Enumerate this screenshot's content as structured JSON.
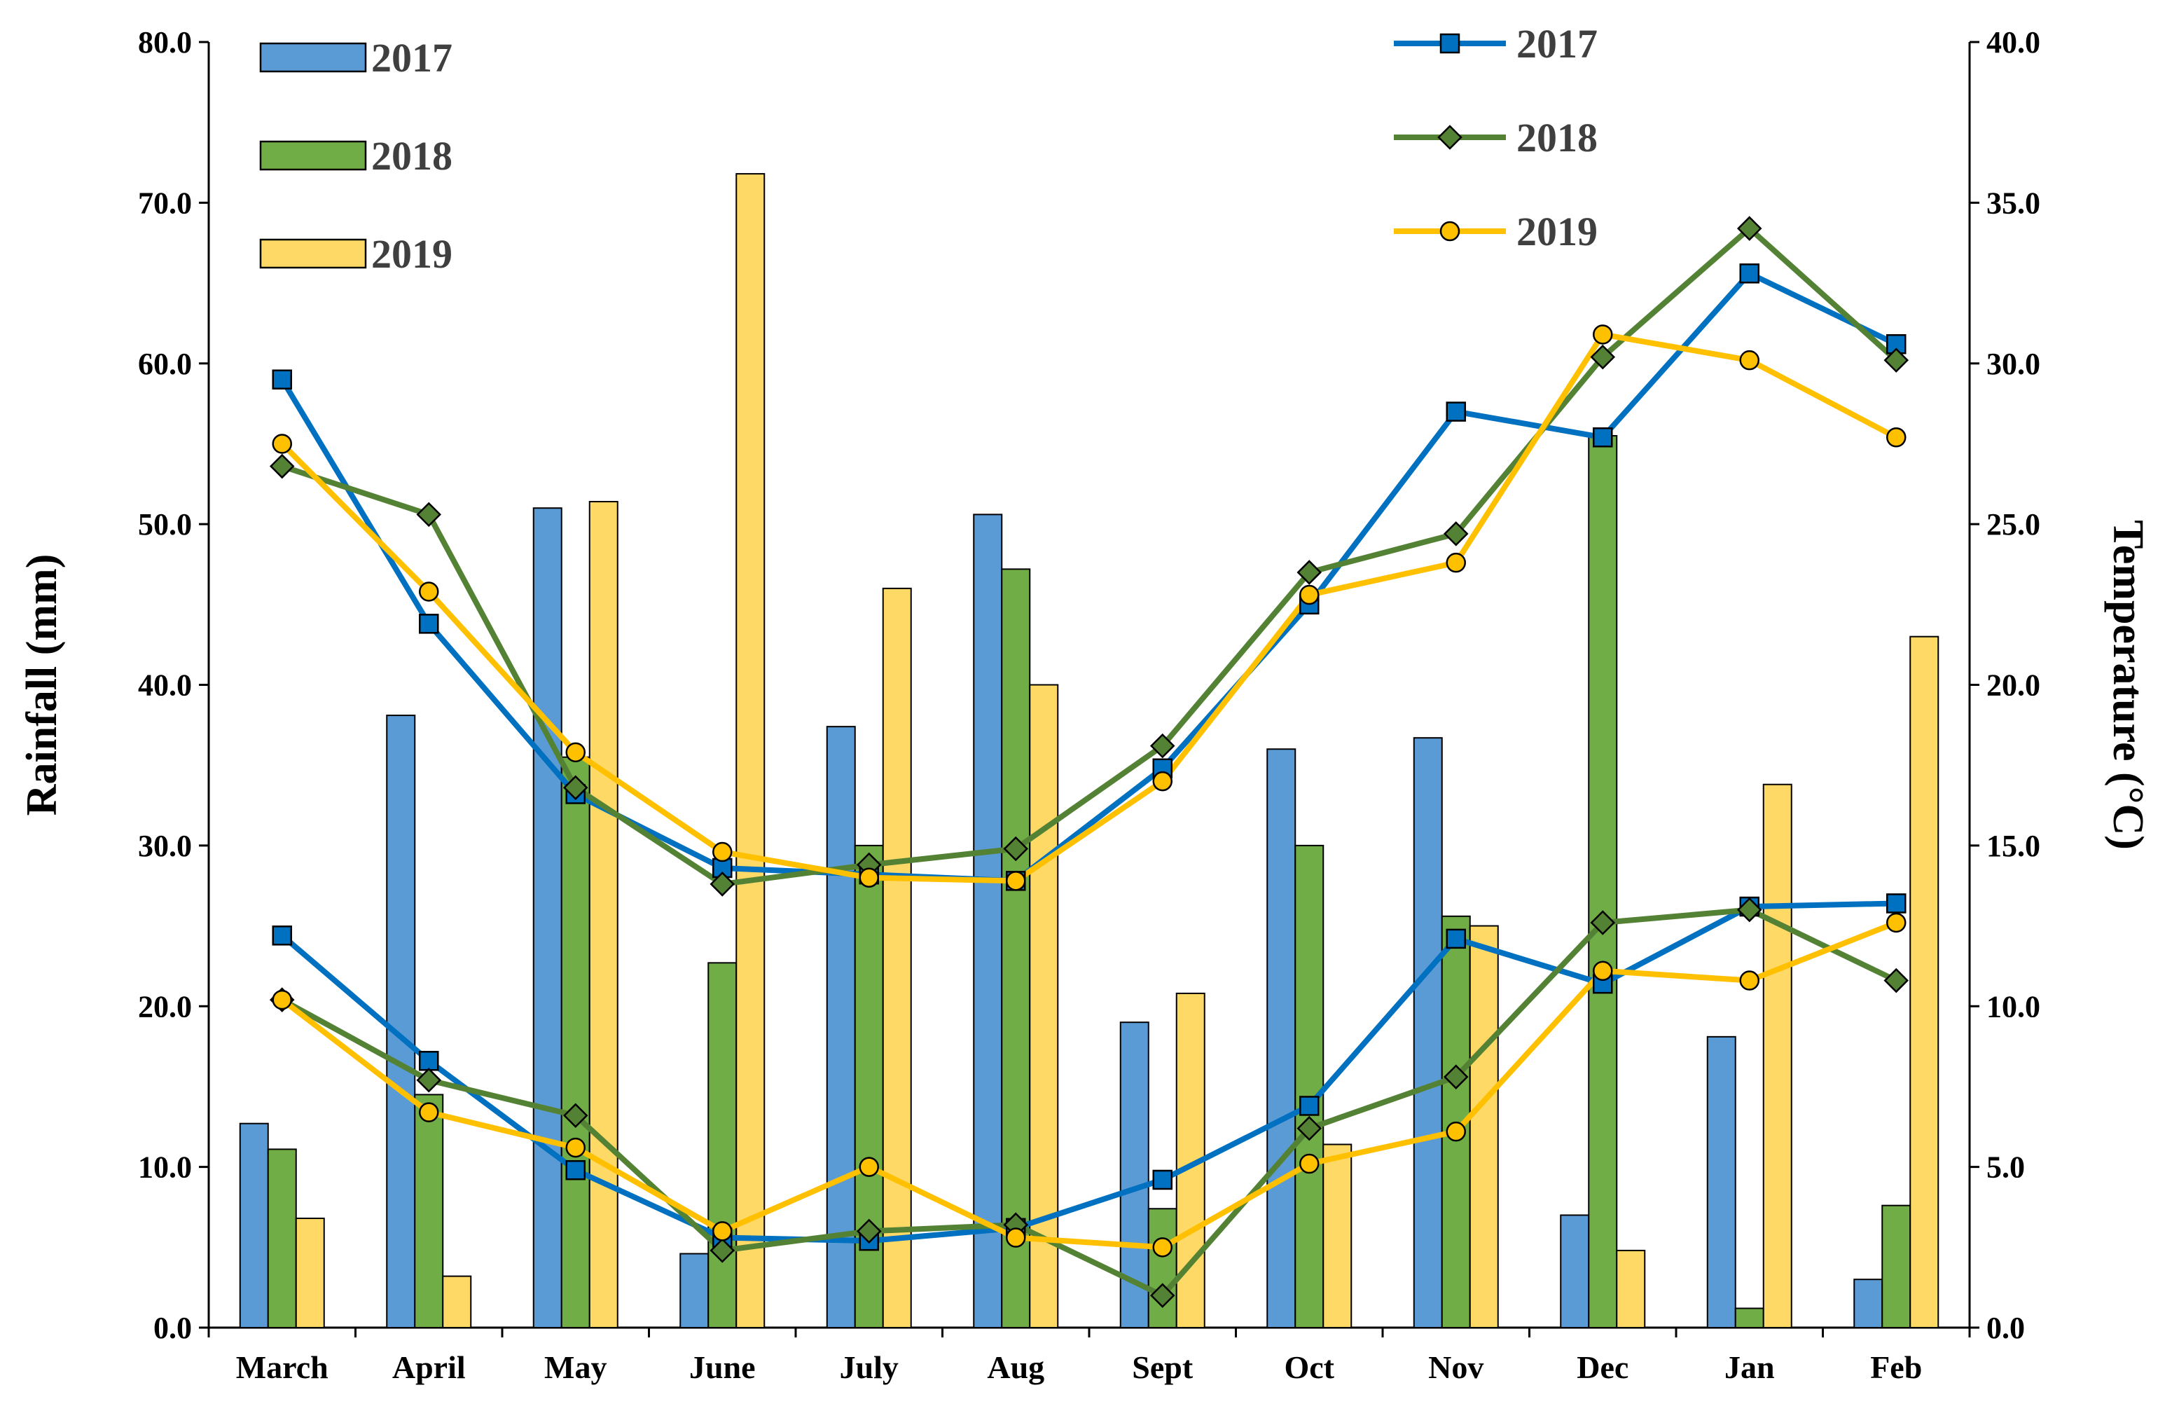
{
  "chart_data": {
    "type": "bar+line",
    "categories": [
      "March",
      "April",
      "May",
      "June",
      "July",
      "Aug",
      "Sept",
      "Oct",
      "Nov",
      "Dec",
      "Jan",
      "Feb"
    ],
    "left_axis": {
      "label": "Rainfall (mm)",
      "ylim": [
        0,
        80
      ],
      "ticks": [
        "0.0",
        "10.0",
        "20.0",
        "30.0",
        "40.0",
        "50.0",
        "60.0",
        "70.0",
        "80.0"
      ]
    },
    "right_axis": {
      "label": "Temperature (°C)",
      "ylim": [
        0,
        40
      ],
      "ticks": [
        "0.0",
        "5.0",
        "10.0",
        "15.0",
        "20.0",
        "25.0",
        "30.0",
        "35.0",
        "40.0"
      ]
    },
    "bar_series": [
      {
        "name": "2017",
        "color": "#5b9bd5",
        "values": [
          12.7,
          38.1,
          51.0,
          4.6,
          37.4,
          50.6,
          19.0,
          36.0,
          36.7,
          7.0,
          18.1,
          3.0
        ]
      },
      {
        "name": "2018",
        "color": "#70ad47",
        "values": [
          11.1,
          14.5,
          35.5,
          22.7,
          30.0,
          47.2,
          7.4,
          30.0,
          25.6,
          55.5,
          1.2,
          7.6
        ]
      },
      {
        "name": "2019",
        "color": "#ffd966",
        "values": [
          6.8,
          3.2,
          51.4,
          71.8,
          46.0,
          40.0,
          20.8,
          11.4,
          25.0,
          4.8,
          33.8,
          43.0
        ]
      }
    ],
    "line_series": [
      {
        "name": "2017",
        "group": "max",
        "color": "#0070c0",
        "marker": "square",
        "values": [
          29.5,
          21.9,
          16.6,
          14.3,
          14.1,
          13.9,
          17.4,
          22.5,
          28.5,
          27.7,
          32.8,
          30.6
        ]
      },
      {
        "name": "2018",
        "group": "max",
        "color": "#548235",
        "marker": "diamond",
        "values": [
          26.8,
          25.3,
          16.8,
          13.8,
          14.4,
          14.9,
          18.1,
          23.5,
          24.7,
          30.2,
          34.2,
          30.1
        ]
      },
      {
        "name": "2019",
        "group": "max",
        "color": "#ffc000",
        "marker": "circle",
        "values": [
          27.5,
          22.9,
          17.9,
          14.8,
          14.0,
          13.9,
          17.0,
          22.8,
          23.8,
          30.9,
          30.1,
          27.7
        ]
      },
      {
        "name": "2017",
        "group": "min",
        "color": "#0070c0",
        "marker": "square",
        "values": [
          12.2,
          8.3,
          4.9,
          2.8,
          2.7,
          3.1,
          4.6,
          6.9,
          12.1,
          10.7,
          13.1,
          13.2
        ]
      },
      {
        "name": "2018",
        "group": "min",
        "color": "#548235",
        "marker": "diamond",
        "values": [
          10.2,
          7.7,
          6.6,
          2.4,
          3.0,
          3.2,
          1.0,
          6.2,
          7.8,
          12.6,
          13.0,
          10.8
        ]
      },
      {
        "name": "2019",
        "group": "min",
        "color": "#ffc000",
        "marker": "circle",
        "values": [
          10.2,
          6.7,
          5.6,
          3.0,
          5.0,
          2.8,
          2.5,
          5.1,
          6.1,
          11.1,
          10.8,
          12.6
        ]
      }
    ],
    "bar_legend": [
      "2017",
      "2018",
      "2019"
    ],
    "line_legend": [
      "2017",
      "2018",
      "2019"
    ],
    "legend_position": "top"
  }
}
